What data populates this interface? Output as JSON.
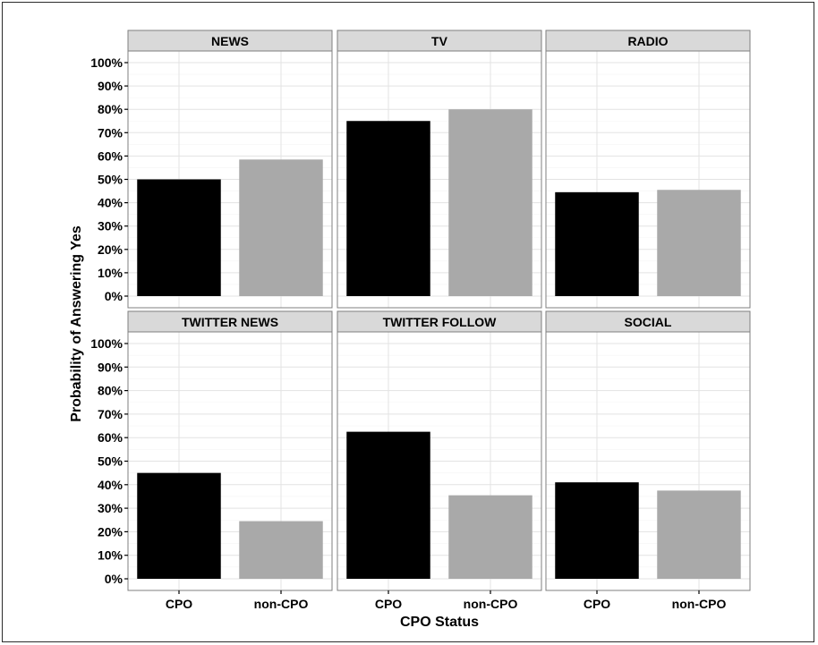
{
  "chart_data": {
    "type": "bar",
    "xlabel": "CPO Status",
    "ylabel": "Probability of Answering Yes",
    "categories": [
      "CPO",
      "non-CPO"
    ],
    "ylim": [
      0,
      1
    ],
    "yticks": [
      "0%",
      "10%",
      "20%",
      "30%",
      "40%",
      "50%",
      "60%",
      "70%",
      "80%",
      "90%",
      "100%"
    ],
    "grid": true,
    "colors": {
      "CPO": "#000000",
      "non-CPO": "#a9a9a9"
    },
    "panels": [
      {
        "title": "NEWS",
        "values": [
          0.5,
          0.585
        ]
      },
      {
        "title": "TV",
        "values": [
          0.75,
          0.8
        ]
      },
      {
        "title": "RADIO",
        "values": [
          0.445,
          0.455
        ]
      },
      {
        "title": "TWITTER NEWS",
        "values": [
          0.45,
          0.245
        ]
      },
      {
        "title": "TWITTER FOLLOW",
        "values": [
          0.625,
          0.355
        ]
      },
      {
        "title": "SOCIAL",
        "values": [
          0.41,
          0.375
        ]
      }
    ]
  }
}
